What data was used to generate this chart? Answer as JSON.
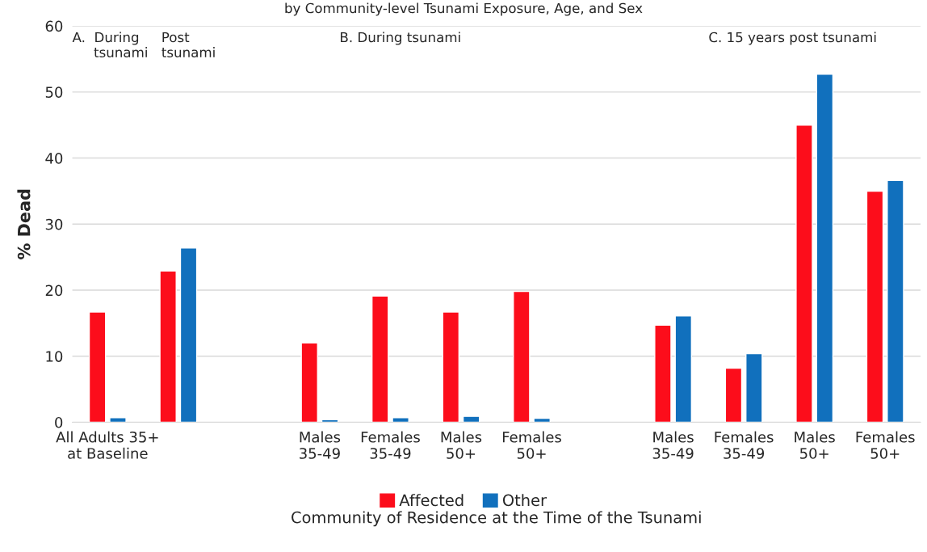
{
  "chart_data": {
    "type": "bar",
    "title": "by Community-level Tsunami Exposure, Age, and Sex",
    "xlabel": "Community of Residence at the Time of the Tsunami",
    "ylabel": "% Dead",
    "categories": [
      "All Adults 35+\nat Baseline",
      null,
      null,
      "Males\n35-49",
      "Females\n35-49",
      "Males\n50+",
      "Females\n50+",
      null,
      "Males\n35-49",
      "Females\n35-49",
      "Males\n50+",
      "Females\n50+"
    ],
    "series": [
      {
        "name": "Affected",
        "color": "#fc0d1b",
        "values": [
          16.7,
          22.9,
          null,
          12.0,
          19.1,
          16.7,
          19.8,
          null,
          14.7,
          8.2,
          45.0,
          35.0
        ]
      },
      {
        "name": "Other",
        "color": "#1170bd",
        "values": [
          0.7,
          26.4,
          null,
          0.4,
          0.7,
          0.9,
          0.6,
          null,
          16.1,
          10.4,
          52.7,
          36.6
        ]
      }
    ],
    "annotations": [
      "A.  During\n     tsunami",
      "Post\ntsunami",
      "B. During tsunami",
      "C. 15 years post tsunami"
    ],
    "ylim": [
      0,
      60
    ],
    "yticks": [
      0,
      10,
      20,
      30,
      40,
      50,
      60
    ],
    "grid": "y",
    "legend": "bottom"
  }
}
